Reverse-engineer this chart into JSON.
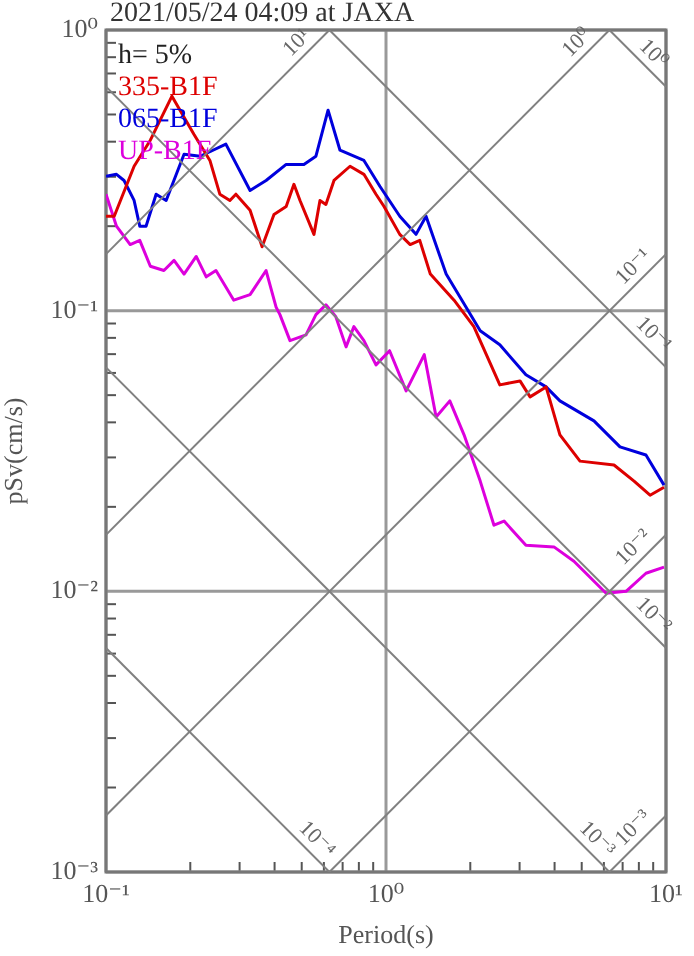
{
  "chart_data": {
    "type": "line",
    "title": "2021/05/24 04:09 at JAXA",
    "xlabel": "Period(s)",
    "ylabel": "pSv(cm/s)",
    "legend_title": "h= 5%",
    "log": "xy",
    "grid": true,
    "legend": "top left",
    "marker": "none",
    "xlim": [
      0.1,
      10
    ],
    "ylim": [
      0.001,
      1
    ],
    "xticks": [
      {
        "value": 0.1,
        "label": "10⁻¹"
      },
      {
        "value": 0.2,
        "label": null
      },
      {
        "value": 0.3,
        "label": null
      },
      {
        "value": 0.4,
        "label": null
      },
      {
        "value": 0.5,
        "label": null
      },
      {
        "value": 0.6,
        "label": null
      },
      {
        "value": 0.7,
        "label": null
      },
      {
        "value": 0.8,
        "label": null
      },
      {
        "value": 0.9,
        "label": null
      },
      {
        "value": 1,
        "label": "10⁰"
      },
      {
        "value": 2,
        "label": null
      },
      {
        "value": 3,
        "label": null
      },
      {
        "value": 4,
        "label": null
      },
      {
        "value": 5,
        "label": null
      },
      {
        "value": 6,
        "label": null
      },
      {
        "value": 7,
        "label": null
      },
      {
        "value": 8,
        "label": null
      },
      {
        "value": 9,
        "label": null
      },
      {
        "value": 10,
        "label": "10¹"
      }
    ],
    "yticks": [
      {
        "value": 0.001,
        "label": "10⁻³"
      },
      {
        "value": 0.002,
        "label": null
      },
      {
        "value": 0.003,
        "label": null
      },
      {
        "value": 0.004,
        "label": null
      },
      {
        "value": 0.005,
        "label": null
      },
      {
        "value": 0.006,
        "label": null
      },
      {
        "value": 0.007,
        "label": null
      },
      {
        "value": 0.008,
        "label": null
      },
      {
        "value": 0.009,
        "label": null
      },
      {
        "value": 0.01,
        "label": "10⁻²"
      },
      {
        "value": 0.02,
        "label": null
      },
      {
        "value": 0.03,
        "label": null
      },
      {
        "value": 0.04,
        "label": null
      },
      {
        "value": 0.05,
        "label": null
      },
      {
        "value": 0.06,
        "label": null
      },
      {
        "value": 0.07,
        "label": null
      },
      {
        "value": 0.08,
        "label": null
      },
      {
        "value": 0.09,
        "label": null
      },
      {
        "value": 0.1,
        "label": "10⁻¹"
      },
      {
        "value": 0.2,
        "label": null
      },
      {
        "value": 0.3,
        "label": null
      },
      {
        "value": 0.4,
        "label": null
      },
      {
        "value": 0.5,
        "label": null
      },
      {
        "value": 0.6,
        "label": null
      },
      {
        "value": 0.7,
        "label": null
      },
      {
        "value": 0.8,
        "label": null
      },
      {
        "value": 0.9,
        "label": null
      },
      {
        "value": 1,
        "label": "10⁰"
      }
    ],
    "series": [
      {
        "type": "line",
        "name": "10¹",
        "color": "#808080",
        "x": [
          0.1,
          0.628
        ],
        "values": [
          0.159,
          1
        ]
      },
      {
        "type": "line",
        "name": "10⁰",
        "color": "#808080",
        "x": [
          0.1,
          6.28
        ],
        "values": [
          0.0159,
          1
        ]
      },
      {
        "type": "line",
        "name": "10⁻¹",
        "color": "#808080",
        "x": [
          0.1,
          10
        ],
        "values": [
          0.00159,
          0.159
        ]
      },
      {
        "type": "line",
        "name": "10⁻²",
        "color": "#808080",
        "x": [
          0.628,
          10
        ],
        "values": [
          0.001,
          0.0159
        ]
      },
      {
        "type": "line",
        "name": "10⁻³",
        "color": "#808080",
        "x": [
          6.28,
          10
        ],
        "values": [
          0.001,
          0.00159
        ]
      },
      {
        "type": "line",
        "name": "10⁰",
        "color": "#808080",
        "x": [
          6.28,
          10
        ],
        "values": [
          1,
          0.628
        ]
      },
      {
        "type": "line",
        "name": "10⁻¹",
        "color": "#808080",
        "x": [
          0.628,
          10
        ],
        "values": [
          1,
          0.0628
        ]
      },
      {
        "type": "line",
        "name": "10⁻²",
        "color": "#808080",
        "x": [
          0.1,
          10
        ],
        "values": [
          0.628,
          0.00628
        ]
      },
      {
        "type": "line",
        "name": "10⁻³",
        "color": "#808080",
        "x": [
          0.1,
          6.28
        ],
        "values": [
          0.0628,
          0.001
        ]
      },
      {
        "type": "line",
        "name": "10⁻⁴",
        "color": "#808080",
        "x": [
          0.1,
          0.628
        ],
        "values": [
          0.00628,
          0.001
        ]
      },
      {
        "name": "335-B1F",
        "color": "#dd0000",
        "x": [
          0.1,
          0.107,
          0.126,
          0.144,
          0.172,
          0.206,
          0.235,
          0.255,
          0.277,
          0.291,
          0.327,
          0.361,
          0.398,
          0.44,
          0.469,
          0.493,
          0.553,
          0.581,
          0.61,
          0.652,
          0.744,
          0.834,
          0.921,
          0.984,
          1.12,
          1.22,
          1.32,
          1.44,
          1.75,
          2.06,
          2.55,
          3.01,
          3.27,
          3.73,
          4.18,
          4.93,
          6.52,
          7.69,
          8.77,
          9.84
        ],
        "values": [
          0.217,
          0.217,
          0.327,
          0.405,
          0.581,
          0.425,
          0.343,
          0.26,
          0.247,
          0.26,
          0.228,
          0.169,
          0.22,
          0.235,
          0.282,
          0.247,
          0.187,
          0.247,
          0.239,
          0.291,
          0.327,
          0.306,
          0.26,
          0.235,
          0.187,
          0.172,
          0.178,
          0.135,
          0.109,
          0.0877,
          0.0544,
          0.0562,
          0.0493,
          0.0535,
          0.0361,
          0.0291,
          0.0282,
          0.0247,
          0.022,
          0.0235
        ]
      },
      {
        "name": "065-B1F",
        "color": "#0000dd",
        "x": [
          0.1,
          0.109,
          0.116,
          0.126,
          0.132,
          0.139,
          0.151,
          0.164,
          0.19,
          0.217,
          0.268,
          0.327,
          0.373,
          0.44,
          0.509,
          0.562,
          0.621,
          0.685,
          0.834,
          0.952,
          1.12,
          1.28,
          1.39,
          1.64,
          1.93,
          2.17,
          2.55,
          3.16,
          3.73,
          4.18,
          5.53,
          6.85,
          8.48,
          9.84
        ],
        "values": [
          0.301,
          0.306,
          0.291,
          0.247,
          0.2,
          0.2,
          0.26,
          0.247,
          0.361,
          0.355,
          0.392,
          0.268,
          0.291,
          0.332,
          0.332,
          0.355,
          0.518,
          0.373,
          0.343,
          0.277,
          0.217,
          0.187,
          0.217,
          0.135,
          0.103,
          0.0848,
          0.0756,
          0.0591,
          0.0535,
          0.0477,
          0.0405,
          0.0327,
          0.0306,
          0.0239
        ]
      },
      {
        "name": "UP-B1F",
        "color": "#dd00dd",
        "x": [
          0.1,
          0.109,
          0.122,
          0.132,
          0.144,
          0.161,
          0.175,
          0.19,
          0.21,
          0.228,
          0.247,
          0.286,
          0.327,
          0.373,
          0.405,
          0.418,
          0.454,
          0.518,
          0.562,
          0.61,
          0.662,
          0.72,
          0.768,
          0.834,
          0.921,
          1.03,
          1.18,
          1.37,
          1.51,
          1.69,
          1.9,
          2.17,
          2.43,
          2.64,
          3.16,
          3.98,
          4.69,
          6.11,
          7.2,
          8.48,
          9.84
        ],
        "values": [
          0.26,
          0.2,
          0.172,
          0.178,
          0.144,
          0.139,
          0.151,
          0.135,
          0.156,
          0.132,
          0.139,
          0.109,
          0.114,
          0.139,
          0.103,
          0.0968,
          0.0782,
          0.082,
          0.0968,
          0.105,
          0.0952,
          0.0743,
          0.0877,
          0.0782,
          0.0641,
          0.072,
          0.0518,
          0.0697,
          0.0418,
          0.0477,
          0.0361,
          0.0247,
          0.0172,
          0.0178,
          0.0146,
          0.0144,
          0.0128,
          0.00984,
          0.01,
          0.0116,
          0.0122
        ]
      }
    ]
  }
}
